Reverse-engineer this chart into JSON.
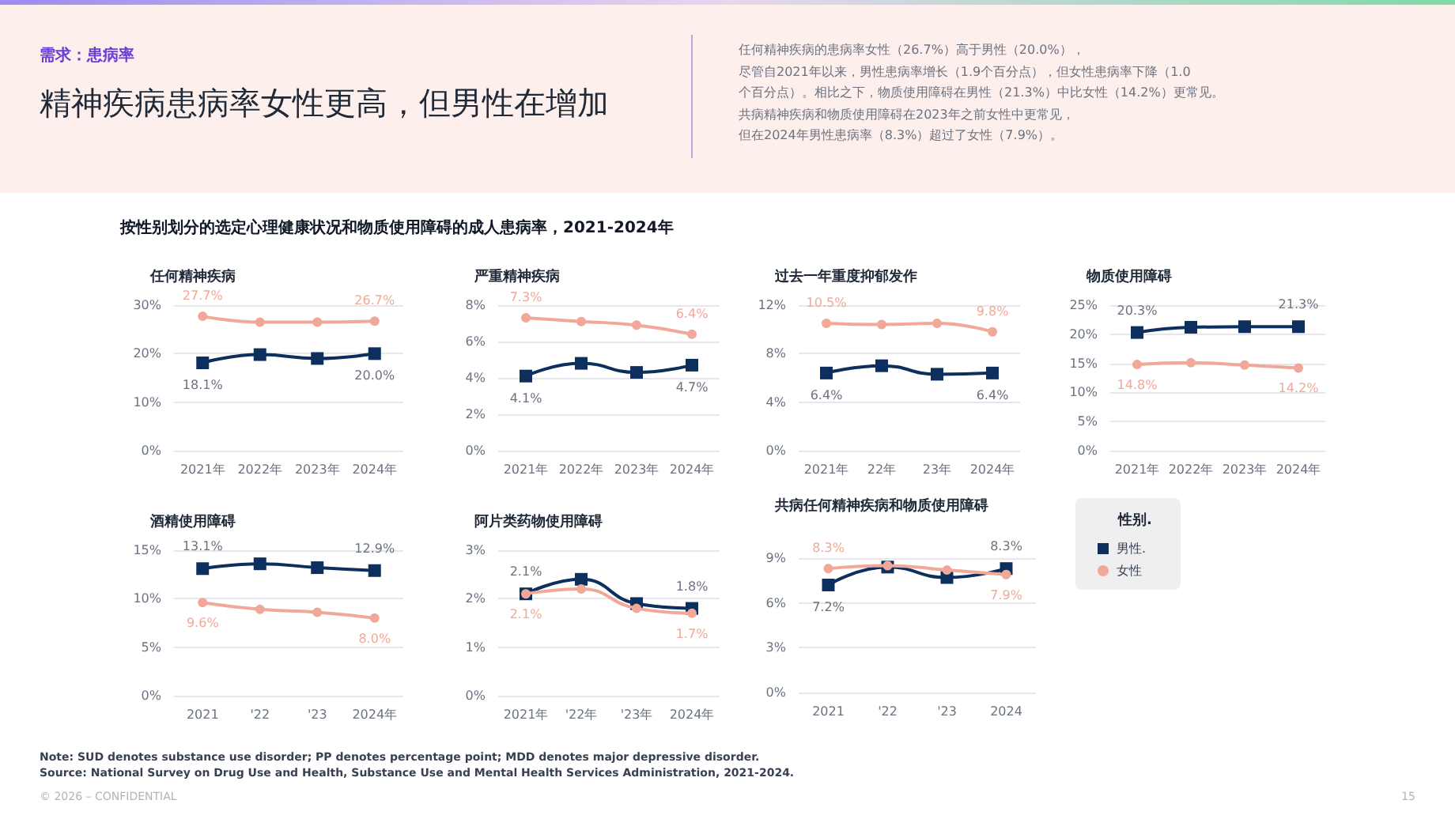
{
  "chart_data": [
    {
      "type": "other",
      "subtitle": "需求：患病率",
      "title": "精神疾病患病率女性更高，但男性在增加",
      "annotations": [
        "任何精神疾病的患病率女性（26.7%）高于男性（20.0%），",
        "尽管自2021年以来，男性患病率增长（1.9个百分点），但女性患病率下降（1.0",
        "个百分点）。相比之下，物质使用障碍在男性（21.3%）中比女性（14.2%）更常见。",
        "共病精神疾病和物质使用障碍在2023年之前女性中更常见，",
        "但在2024年男性患病率（8.3%）超过了女性（7.9%）。",
        "按性别划分的选定心理健康状况和物质使用障碍的成人患病率，2021-2024年",
        "Note: SUD denotes substance use disorder; PP denotes percentage point; MDD denotes major depressive disorder.",
        "Source: National Survey on Drug Use and Health, Substance Use and Mental Health Services Administration, 2021-2024.",
        "© 2026 – CONFIDENTIAL",
        "15"
      ]
    },
    {
      "type": "line",
      "title": "任何精神疾病",
      "categories": [
        "2021年",
        "2022年",
        "2023年",
        "2024年"
      ],
      "ylim": [
        0,
        30
      ],
      "yticks": [
        {
          "value": 0,
          "label": "0%"
        },
        {
          "value": 10,
          "label": "10%"
        },
        {
          "value": 20,
          "label": "20%"
        },
        {
          "value": 30,
          "label": "30%"
        }
      ],
      "grid": "y",
      "series": [
        {
          "color": "#0d2f5e",
          "marker": "square",
          "values": [
            18.1,
            19.8,
            19.0,
            20.0
          ],
          "value_labels": [
            "18.1%",
            null,
            null,
            "20.0%"
          ]
        },
        {
          "color": "#f2a898",
          "marker": "circle",
          "values": [
            27.7,
            26.5,
            26.5,
            26.7
          ],
          "value_labels": [
            "27.7%",
            null,
            null,
            "26.7%"
          ]
        }
      ]
    },
    {
      "type": "line",
      "title": "严重精神疾病",
      "categories": [
        "2021年",
        "2022年",
        "2023年",
        "2024年"
      ],
      "ylim": [
        0,
        8
      ],
      "yticks": [
        {
          "value": 0,
          "label": "0%"
        },
        {
          "value": 2,
          "label": "2%"
        },
        {
          "value": 4,
          "label": "4%"
        },
        {
          "value": 6,
          "label": "6%"
        },
        {
          "value": 8,
          "label": "8%"
        }
      ],
      "grid": "y",
      "series": [
        {
          "color": "#0d2f5e",
          "marker": "square",
          "values": [
            4.1,
            4.8,
            4.3,
            4.7
          ],
          "value_labels": [
            "4.1%",
            null,
            null,
            "4.7%"
          ]
        },
        {
          "color": "#f2a898",
          "marker": "circle",
          "values": [
            7.3,
            7.1,
            6.9,
            6.4
          ],
          "value_labels": [
            "7.3%",
            null,
            null,
            "6.4%"
          ]
        }
      ]
    },
    {
      "type": "line",
      "title": "过去一年重度抑郁发作",
      "categories": [
        "2021年",
        "22年",
        "23年",
        "2024年"
      ],
      "ylim": [
        0,
        12
      ],
      "yticks": [
        {
          "value": 0,
          "label": "0%"
        },
        {
          "value": 4,
          "label": "4%"
        },
        {
          "value": 8,
          "label": "8%"
        },
        {
          "value": 12,
          "label": "12%"
        }
      ],
      "grid": "y",
      "series": [
        {
          "color": "#0d2f5e",
          "marker": "square",
          "values": [
            6.4,
            7.0,
            6.3,
            6.4
          ],
          "value_labels": [
            "6.4%",
            null,
            null,
            "6.4%"
          ]
        },
        {
          "color": "#f2a898",
          "marker": "circle",
          "values": [
            10.5,
            10.4,
            10.5,
            9.8
          ],
          "value_labels": [
            "10.5%",
            null,
            null,
            "9.8%"
          ]
        }
      ]
    },
    {
      "type": "line",
      "title": "物质使用障碍",
      "categories": [
        "2021年",
        "2022年",
        "2023年",
        "2024年"
      ],
      "ylim": [
        0,
        25
      ],
      "yticks": [
        {
          "value": 0,
          "label": "0%"
        },
        {
          "value": 5,
          "label": "5%"
        },
        {
          "value": 10,
          "label": "10%"
        },
        {
          "value": 15,
          "label": "15%"
        },
        {
          "value": 20,
          "label": "20%"
        },
        {
          "value": 25,
          "label": "25%"
        }
      ],
      "grid": "y",
      "series": [
        {
          "color": "#0d2f5e",
          "marker": "square",
          "values": [
            20.3,
            21.2,
            21.3,
            21.3
          ],
          "value_labels": [
            "20.3%",
            null,
            null,
            "21.3%"
          ]
        },
        {
          "color": "#f2a898",
          "marker": "circle",
          "values": [
            14.8,
            15.1,
            14.7,
            14.2
          ],
          "value_labels": [
            "14.8%",
            null,
            null,
            "14.2%"
          ]
        }
      ]
    },
    {
      "type": "line",
      "title": "酒精使用障碍",
      "categories": [
        "2021",
        "'22",
        "'23",
        "2024年"
      ],
      "ylim": [
        0,
        15
      ],
      "yticks": [
        {
          "value": 0,
          "label": "0%"
        },
        {
          "value": 5,
          "label": "5%"
        },
        {
          "value": 10,
          "label": "10%"
        },
        {
          "value": 15,
          "label": "15%"
        }
      ],
      "grid": "y",
      "series": [
        {
          "color": "#0d2f5e",
          "marker": "square",
          "values": [
            13.1,
            13.6,
            13.2,
            12.9
          ],
          "value_labels": [
            "13.1%",
            null,
            null,
            "12.9%"
          ]
        },
        {
          "color": "#f2a898",
          "marker": "circle",
          "values": [
            9.6,
            8.9,
            8.6,
            8.0
          ],
          "value_labels": [
            "9.6%",
            null,
            null,
            "8.0%"
          ]
        }
      ]
    },
    {
      "type": "line",
      "title": "阿片类药物使用障碍",
      "categories": [
        "2021年",
        "'22年",
        "'23年",
        "2024年"
      ],
      "ylim": [
        0,
        3
      ],
      "yticks": [
        {
          "value": 0,
          "label": "0%"
        },
        {
          "value": 1,
          "label": "1%"
        },
        {
          "value": 2,
          "label": "2%"
        },
        {
          "value": 3,
          "label": "3%"
        }
      ],
      "grid": "y",
      "series": [
        {
          "color": "#0d2f5e",
          "marker": "square",
          "values": [
            2.1,
            2.4,
            1.9,
            1.8
          ],
          "value_labels": [
            "2.1%",
            null,
            null,
            "1.8%"
          ]
        },
        {
          "color": "#f2a898",
          "marker": "circle",
          "values": [
            2.1,
            2.2,
            1.8,
            1.7
          ],
          "value_labels": [
            "2.1%",
            null,
            null,
            "1.7%"
          ]
        }
      ]
    },
    {
      "type": "line",
      "title": "共病任何精神疾病和物质使用障碍",
      "categories": [
        "2021",
        "'22",
        "'23",
        "2024"
      ],
      "ylim": [
        0,
        9
      ],
      "yticks": [
        {
          "value": 0,
          "label": "0%"
        },
        {
          "value": 3,
          "label": "3%"
        },
        {
          "value": 6,
          "label": "6%"
        },
        {
          "value": 9,
          "label": "9%"
        }
      ],
      "grid": "y",
      "legend": "right",
      "legend_title": "性别.",
      "series": [
        {
          "name": "男性.",
          "color": "#0d2f5e",
          "marker": "square",
          "values": [
            7.2,
            8.4,
            7.7,
            8.3
          ],
          "value_labels": [
            "7.2%",
            null,
            null,
            "8.3%"
          ]
        },
        {
          "name": "女性",
          "color": "#f2a898",
          "marker": "circle",
          "values": [
            8.3,
            8.5,
            8.2,
            7.9
          ],
          "value_labels": [
            "8.3%",
            null,
            null,
            "7.9%"
          ]
        }
      ]
    }
  ]
}
